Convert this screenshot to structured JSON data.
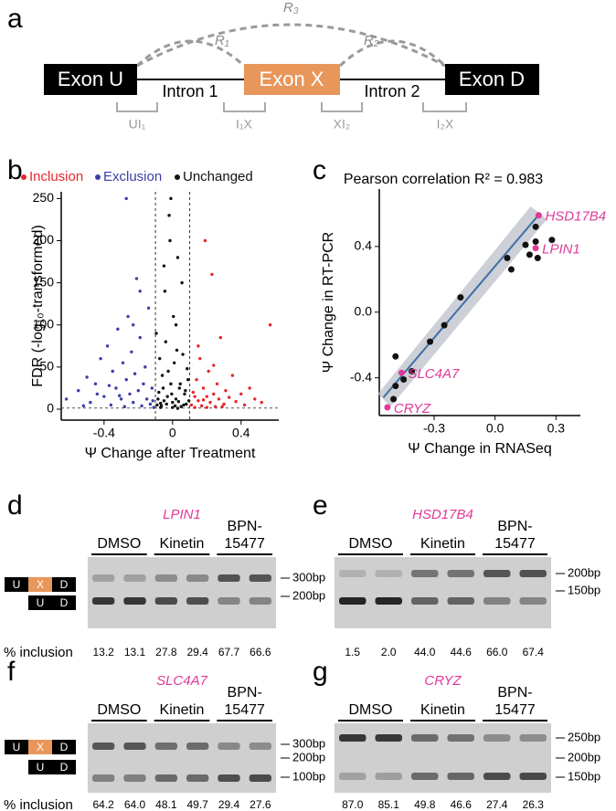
{
  "diagram": {
    "letter": "a",
    "exons": [
      "Exon U",
      "Exon X",
      "Exon D"
    ],
    "introns": [
      "Intron 1",
      "Intron 2"
    ],
    "arcs": [
      "R₁",
      "R₂",
      "R₃"
    ],
    "junctions": [
      "UI₁",
      "I₁X",
      "XI₂",
      "I₂X"
    ]
  },
  "chart_data": [
    {
      "type": "scatter",
      "letter": "b",
      "xlabel": "Ψ Change after Treatment",
      "ylabel": "FDR (-log₁₀-transformed)",
      "xlim": [
        -0.65,
        0.62
      ],
      "ylim": [
        -13,
        258
      ],
      "xticks": [
        -0.4,
        0,
        0.4
      ],
      "yticks": [
        0,
        50,
        100,
        150,
        200,
        250
      ],
      "vlines": [
        -0.1,
        0.1
      ],
      "hline": 1.3,
      "series": [
        {
          "name": "Inclusion",
          "color": "#e8262a",
          "x": [
            0.11,
            0.12,
            0.13,
            0.14,
            0.15,
            0.16,
            0.17,
            0.18,
            0.19,
            0.2,
            0.21,
            0.22,
            0.23,
            0.24,
            0.25,
            0.26,
            0.27,
            0.28,
            0.3,
            0.31,
            0.33,
            0.35,
            0.37,
            0.4,
            0.42,
            0.45,
            0.48,
            0.52,
            0.57,
            0.15,
            0.13,
            0.18,
            0.2,
            0.24,
            0.29
          ],
          "values": [
            5,
            20,
            2,
            35,
            10,
            60,
            4,
            25,
            200,
            15,
            45,
            8,
            160,
            18,
            3,
            30,
            12,
            85,
            6,
            22,
            14,
            40,
            9,
            18,
            5,
            25,
            12,
            8,
            100,
            75,
            15,
            11,
            2,
            52,
            3
          ]
        },
        {
          "name": "Exclusion",
          "color": "#3b3ea6",
          "x": [
            -0.62,
            -0.55,
            -0.5,
            -0.48,
            -0.45,
            -0.42,
            -0.4,
            -0.38,
            -0.36,
            -0.35,
            -0.33,
            -0.32,
            -0.3,
            -0.29,
            -0.28,
            -0.27,
            -0.26,
            -0.25,
            -0.24,
            -0.23,
            -0.22,
            -0.21,
            -0.2,
            -0.19,
            -0.18,
            -0.17,
            -0.16,
            -0.15,
            -0.14,
            -0.13,
            -0.12,
            -0.115,
            -0.11,
            -0.44,
            -0.37,
            -0.31,
            -0.23,
            -0.19,
            -0.52,
            -0.27
          ],
          "values": [
            12,
            22,
            38,
            8,
            30,
            60,
            15,
            75,
            5,
            45,
            25,
            95,
            12,
            55,
            3,
            35,
            110,
            18,
            68,
            8,
            42,
            155,
            22,
            85,
            4,
            30,
            50,
            12,
            120,
            6,
            25,
            10,
            2,
            18,
            28,
            16,
            100,
            140,
            4,
            250
          ]
        },
        {
          "name": "Unchanged",
          "color": "#111111",
          "x": [
            -0.09,
            -0.08,
            -0.07,
            -0.06,
            -0.05,
            -0.04,
            -0.03,
            -0.02,
            -0.01,
            0,
            0.01,
            0.02,
            0.03,
            0.04,
            0.05,
            0.06,
            0.07,
            0.08,
            0.09,
            -0.095,
            -0.085,
            -0.075,
            -0.065,
            -0.055,
            -0.045,
            -0.035,
            -0.025,
            -0.015,
            -0.005,
            0.005,
            0.015,
            0.025,
            0.035,
            0.045,
            0.055,
            0.065,
            0.075,
            0.085,
            0.095,
            -0.01,
            0.02,
            -0.05,
            0,
            0.03,
            -0.07
          ],
          "values": [
            5,
            20,
            2,
            40,
            10,
            80,
            15,
            230,
            30,
            8,
            55,
            12,
            180,
            25,
            3,
            65,
            18,
            6,
            35,
            90,
            12,
            60,
            4,
            25,
            140,
            6,
            45,
            200,
            18,
            110,
            4,
            70,
            9,
            30,
            150,
            5,
            22,
            48,
            10,
            250,
            100,
            170,
            2,
            1,
            7
          ]
        }
      ]
    },
    {
      "type": "scatter",
      "letter": "c",
      "title": "Pearson correlation R² = 0.983",
      "xlabel": "Ψ Change in RNASeq",
      "ylabel": "Ψ Change in RT-PCR",
      "xlim": [
        -0.57,
        0.42
      ],
      "ylim": [
        -0.63,
        0.75
      ],
      "xticks": [
        -0.3,
        {
          "value": 0,
          "label": "0.0"
        },
        0.3
      ],
      "yticks": [
        -0.4,
        {
          "value": 0,
          "label": "0.0"
        },
        0.4
      ],
      "fit": {
        "x": [
          -0.55,
          0.22
        ],
        "values": [
          -0.52,
          0.6
        ]
      },
      "series": [
        {
          "color": "#111111",
          "x": [
            -0.5,
            -0.49,
            -0.49,
            -0.45,
            -0.41,
            -0.25,
            -0.32,
            -0.17,
            0.06,
            0.08,
            0.15,
            0.17,
            0.2,
            0.2,
            0.21,
            0.28
          ],
          "values": [
            -0.53,
            -0.45,
            -0.27,
            -0.41,
            -0.36,
            -0.08,
            -0.18,
            0.09,
            0.33,
            0.26,
            0.41,
            0.35,
            0.52,
            0.43,
            0.33,
            0.44
          ]
        },
        {
          "color": "#e0399a",
          "x": [
            0.215,
            0.2,
            -0.46,
            -0.53
          ],
          "values": [
            0.59,
            0.39,
            -0.37,
            -0.58
          ],
          "point_labels": [
            "HSD17B4",
            "LPIN1",
            "SLC4A7",
            "CRYZ"
          ]
        }
      ]
    }
  ],
  "gels": [
    {
      "letter": "d",
      "gene": "LPIN1",
      "groups": [
        [
          "DMSO"
        ],
        [
          "Kinetin"
        ],
        [
          "BPN-",
          "15477"
        ]
      ],
      "markers": [
        "300bp",
        "200bp"
      ],
      "isoforms": [
        [
          "U",
          "X",
          "D"
        ],
        [
          "U",
          "D"
        ]
      ],
      "row_label": "% inclusion",
      "values": [
        13.2,
        13.1,
        27.8,
        29.4,
        67.7,
        66.6
      ],
      "value_labels": [
        "13.2",
        "13.1",
        "27.8",
        "29.4",
        "67.7",
        "66.6"
      ]
    },
    {
      "letter": "e",
      "gene": "HSD17B4",
      "groups": [
        [
          "DMSO"
        ],
        [
          "Kinetin"
        ],
        [
          "BPN-",
          "15477"
        ]
      ],
      "markers": [
        "200bp",
        "150bp"
      ],
      "values": [
        1.5,
        2.0,
        44.0,
        44.6,
        66.0,
        67.4
      ],
      "value_labels": [
        "1.5",
        "2.0",
        "44.0",
        "44.6",
        "66.0",
        "67.4"
      ]
    },
    {
      "letter": "f",
      "gene": "SLC4A7",
      "groups": [
        [
          "DMSO"
        ],
        [
          "Kinetin"
        ],
        [
          "BPN-",
          "15477"
        ]
      ],
      "markers": [
        "300bp",
        "200bp",
        "100bp"
      ],
      "isoforms": [
        [
          "U",
          "X",
          "D"
        ],
        [
          "U",
          "D"
        ]
      ],
      "row_label": "% inclusion",
      "values": [
        64.2,
        64.0,
        48.1,
        49.7,
        29.4,
        27.6
      ],
      "value_labels": [
        "64.2",
        "64.0",
        "48.1",
        "49.7",
        "29.4",
        "27.6"
      ]
    },
    {
      "letter": "g",
      "gene": "CRYZ",
      "groups": [
        [
          "DMSO"
        ],
        [
          "Kinetin"
        ],
        [
          "BPN-",
          "15477"
        ]
      ],
      "markers": [
        "250bp",
        "200bp",
        "150bp"
      ],
      "values": [
        87.0,
        85.1,
        49.8,
        46.6,
        27.4,
        26.3
      ],
      "value_labels": [
        "87.0",
        "85.1",
        "49.8",
        "46.6",
        "27.4",
        "26.3"
      ]
    }
  ]
}
